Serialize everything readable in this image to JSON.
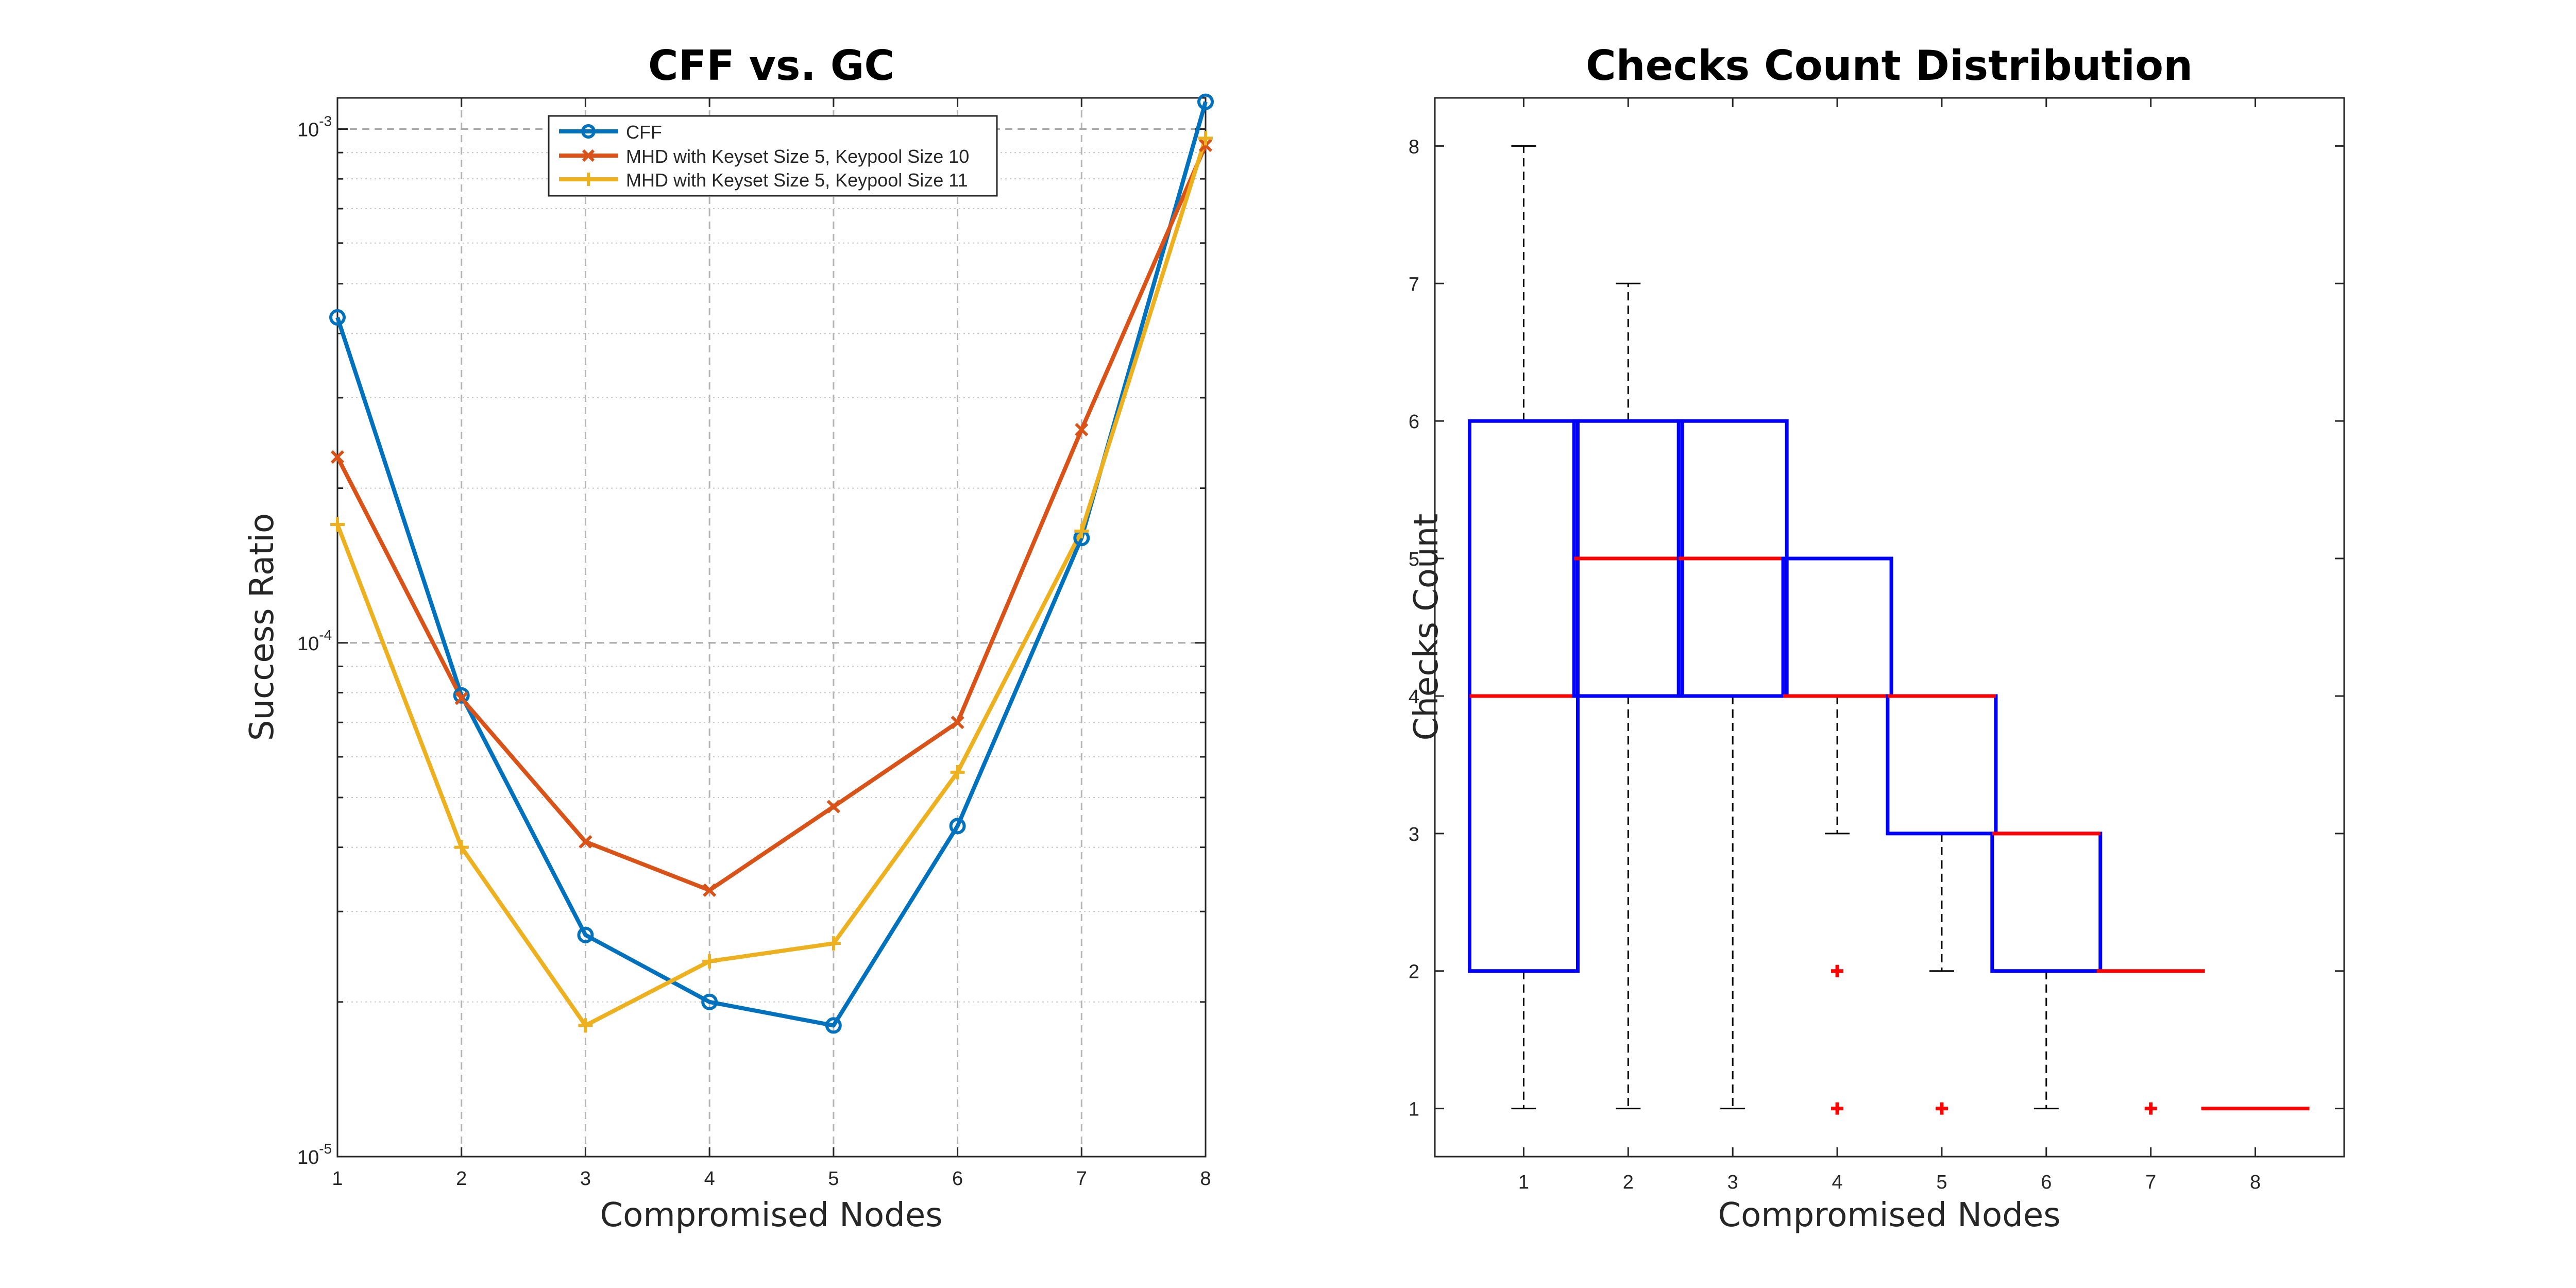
{
  "chart_data": [
    {
      "type": "line",
      "title": "CFF vs. GC",
      "xlabel": "Compromised Nodes",
      "ylabel": "Success Ratio",
      "x": [
        1,
        2,
        3,
        4,
        5,
        6,
        7,
        8
      ],
      "xlim": [
        1,
        8
      ],
      "ylim": [
        1e-05,
        0.00115
      ],
      "yscale": "log",
      "y_tick_labels": [
        "10",
        "10",
        "10"
      ],
      "y_tick_exponents": [
        "-5",
        "-4",
        "-3"
      ],
      "grid": true,
      "legend_position": "top",
      "series": [
        {
          "name": "CFF",
          "marker": "circle",
          "color": "#0072BD",
          "values": [
            0.00043,
            7.9e-05,
            2.7e-05,
            2e-05,
            1.8e-05,
            4.4e-05,
            0.00016,
            0.00113
          ]
        },
        {
          "name": "MHD with Keyset Size 5, Keypool Size 10",
          "marker": "x",
          "color": "#D95319",
          "values": [
            0.00023,
            7.8e-05,
            4.1e-05,
            3.3e-05,
            4.8e-05,
            7e-05,
            0.00026,
            0.00093
          ]
        },
        {
          "name": "MHD with Keyset Size 5, Keypool Size 11",
          "marker": "plus",
          "color": "#EDB120",
          "values": [
            0.00017,
            4e-05,
            1.8e-05,
            2.4e-05,
            2.6e-05,
            5.6e-05,
            0.000165,
            0.00096
          ]
        }
      ]
    },
    {
      "type": "box",
      "title": "Checks Count Distribution",
      "xlabel": "Compromised Nodes",
      "ylabel": "Checks Count",
      "categories": [
        "1",
        "2",
        "3",
        "4",
        "5",
        "6",
        "7",
        "8"
      ],
      "ylim": [
        0.65,
        8.35
      ],
      "y_ticks": [
        1,
        2,
        3,
        4,
        5,
        6,
        7,
        8
      ],
      "box_color": "#0000FF",
      "median_color": "#FF0000",
      "outlier_color": "#FF0000",
      "boxes": [
        {
          "q1": 2,
          "median": 4,
          "q3": 6,
          "whisker_low": 1,
          "whisker_high": 8,
          "outliers": []
        },
        {
          "q1": 4,
          "median": 5,
          "q3": 6,
          "whisker_low": 1,
          "whisker_high": 7,
          "outliers": []
        },
        {
          "q1": 4,
          "median": 5,
          "q3": 6,
          "whisker_low": 1,
          "whisker_high": 6,
          "outliers": []
        },
        {
          "q1": 4,
          "median": 4,
          "q3": 5,
          "whisker_low": 3,
          "whisker_high": 5,
          "outliers": [
            2,
            1
          ]
        },
        {
          "q1": 3,
          "median": 4,
          "q3": 4,
          "whisker_low": 2,
          "whisker_high": 4,
          "outliers": [
            1
          ]
        },
        {
          "q1": 2,
          "median": 3,
          "q3": 3,
          "whisker_low": 1,
          "whisker_high": 3,
          "outliers": []
        },
        {
          "q1": 2,
          "median": 2,
          "q3": 2,
          "whisker_low": 2,
          "whisker_high": 2,
          "outliers": [
            1
          ]
        },
        {
          "q1": 1,
          "median": 1,
          "q3": 1,
          "whisker_low": 1,
          "whisker_high": 1,
          "outliers": []
        }
      ]
    }
  ]
}
